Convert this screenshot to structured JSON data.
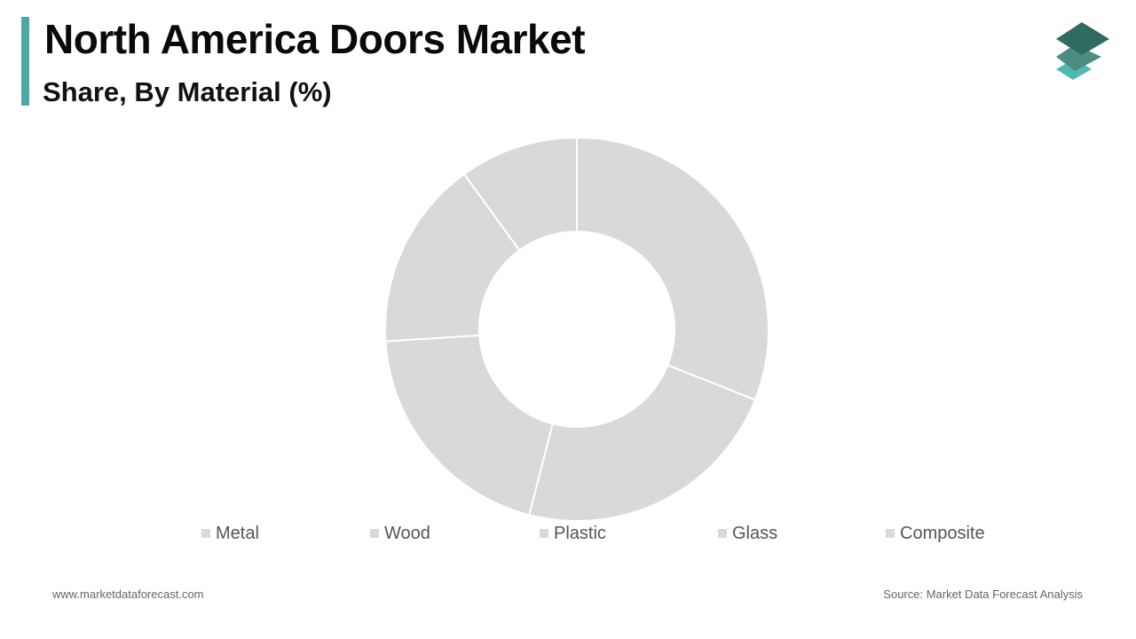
{
  "header": {
    "title": "North America Doors Market",
    "subtitle": "Share, By Material (%)"
  },
  "colors": {
    "accent": "#4aa9a4",
    "slice": "#d9d9d9",
    "slice_border": "#ffffff",
    "legend_swatch": "#d9d9d9",
    "logo_dark": "#2f6b5e",
    "logo_mid": "#4b8d80",
    "logo_light": "#4fb9b3"
  },
  "logo": {
    "icon": "stacked-layers-icon"
  },
  "chart_data": {
    "type": "pie",
    "donut": true,
    "title": "North America Doors Market",
    "subtitle": "Share, By Material (%)",
    "categories": [
      "Metal",
      "Wood",
      "Plastic",
      "Glass",
      "Composite"
    ],
    "values": [
      31,
      23,
      20,
      16,
      10
    ],
    "legend_position": "bottom"
  },
  "footer": {
    "website": "www.marketdataforecast.com",
    "source": "Source: Market Data Forecast Analysis"
  }
}
